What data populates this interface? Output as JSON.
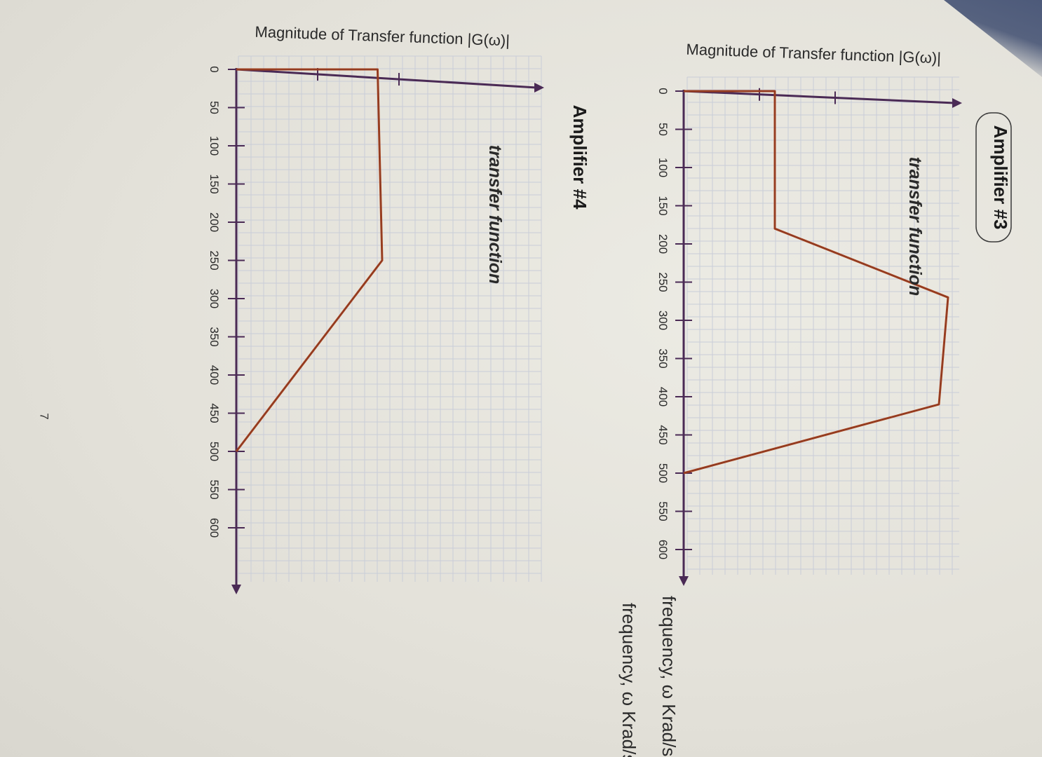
{
  "page": {
    "number": "7"
  },
  "chart_data": [
    {
      "type": "line",
      "heading": "Amplifier #3",
      "subheading": "transfer function",
      "ylabel": "Magnitude of Transfer function |G(ω)|",
      "xlabel": "frequency, ω Krad/s",
      "x_ticks": [
        0,
        50,
        100,
        150,
        200,
        250,
        300,
        350,
        400,
        450,
        500,
        550,
        600
      ],
      "xlim": [
        0,
        620
      ],
      "y_major_ticks": 2,
      "series": [
        {
          "x": [
            0,
            0,
            180,
            270,
            410,
            500
          ],
          "y": [
            0,
            0.5,
            0.5,
            1.45,
            1.4,
            0
          ]
        }
      ],
      "grid": true,
      "colors": {
        "axis": "#4a2a55",
        "line": "#a8431c",
        "grid": "#c9cdd8"
      }
    },
    {
      "type": "line",
      "heading": "Amplifier #4",
      "subheading": "transfer function",
      "ylabel": "Magnitude of Transfer function |G(ω)|",
      "xlabel": "frequency, ω Krad/s",
      "x_ticks": [
        0,
        50,
        100,
        150,
        200,
        250,
        300,
        350,
        400,
        450,
        500,
        550,
        600
      ],
      "xlim": [
        0,
        620
      ],
      "y_major_ticks": 2,
      "series": [
        {
          "x": [
            0,
            0,
            250,
            500
          ],
          "y": [
            0,
            1.55,
            1.6,
            0
          ]
        }
      ],
      "grid": true,
      "colors": {
        "axis": "#4a2a55",
        "line": "#a8431c",
        "grid": "#c9cdd8"
      }
    }
  ]
}
